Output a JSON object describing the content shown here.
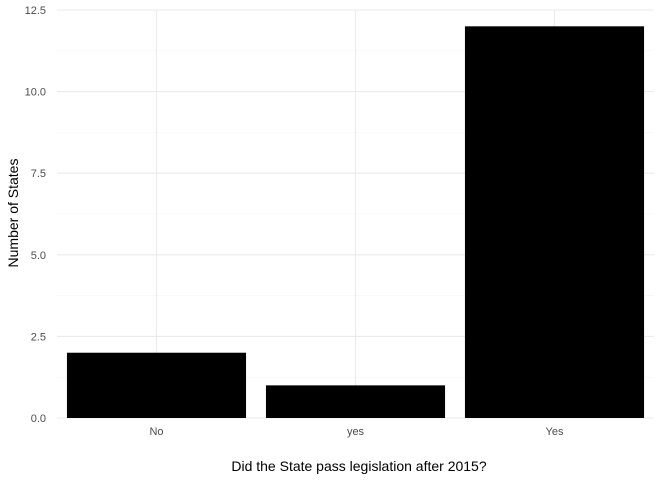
{
  "chart_data": {
    "type": "bar",
    "categories": [
      "No",
      "yes",
      "Yes"
    ],
    "values": [
      2,
      1,
      12
    ],
    "xlabel": "Did the State pass legislation after 2015?",
    "ylabel": "Number of States",
    "ylim": [
      0,
      12.5
    ],
    "yticks": [
      "0.0",
      "2.5",
      "5.0",
      "7.5",
      "10.0",
      "12.5"
    ],
    "grid": true,
    "legend": "none",
    "colors": {
      "bar": "#000000",
      "grid_major": "#ebebeb",
      "grid_minor": "#f5f5f5",
      "tick_text": "#4d4d4d"
    }
  }
}
